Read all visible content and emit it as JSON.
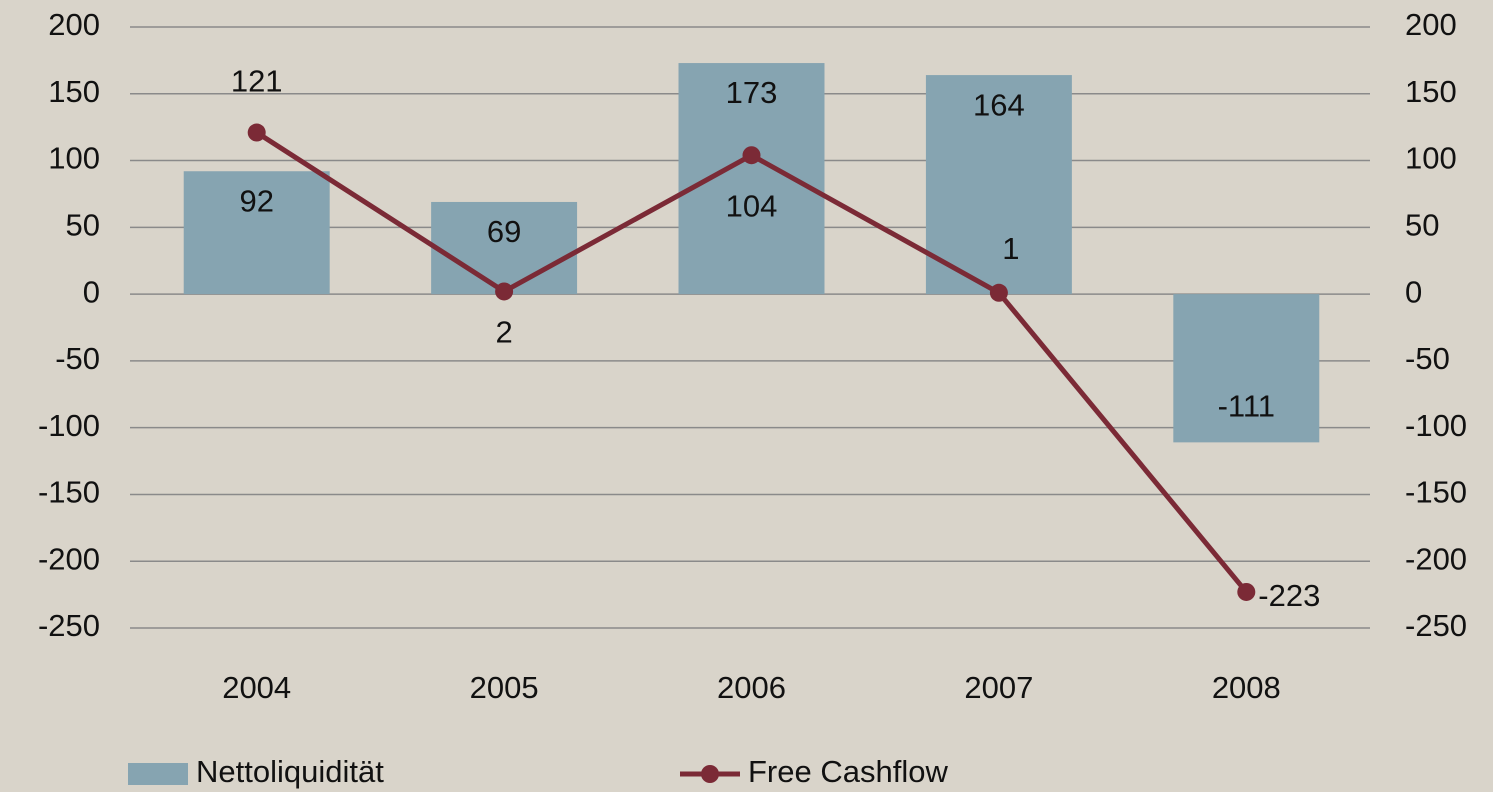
{
  "chart_data": {
    "type": "bar",
    "categories": [
      "2004",
      "2005",
      "2006",
      "2007",
      "2008"
    ],
    "series": [
      {
        "name": "Nettoliquidität",
        "type": "bar",
        "color": "#86a4b1",
        "values": [
          92,
          69,
          173,
          164,
          -111
        ]
      },
      {
        "name": "Free Cashflow",
        "type": "line",
        "axis": "y2",
        "color": "#7b2a36",
        "values": [
          121,
          2,
          104,
          1,
          -223
        ]
      }
    ],
    "ylim": [
      -250,
      200
    ],
    "yticks": [
      -250,
      -200,
      -150,
      -100,
      -50,
      0,
      50,
      100,
      150,
      200
    ],
    "y2lim": [
      -250,
      200
    ],
    "y2ticks": [
      -250,
      -200,
      -150,
      -100,
      -50,
      0,
      50,
      100,
      150,
      200
    ],
    "grid": true,
    "legend": "bottom"
  }
}
